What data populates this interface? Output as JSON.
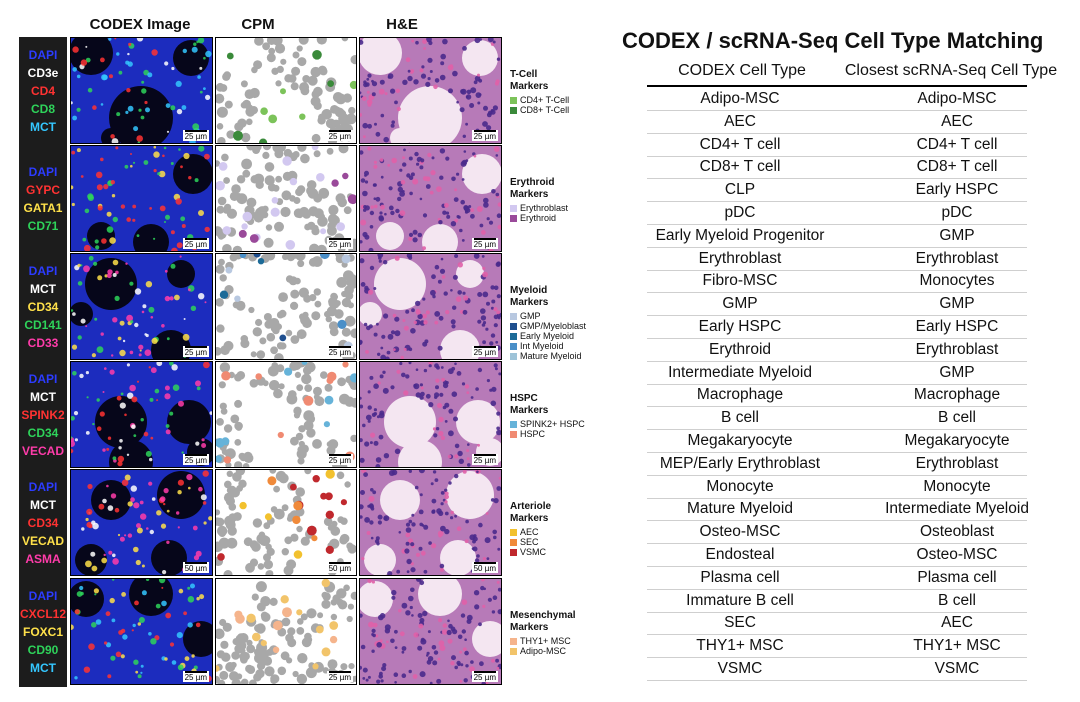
{
  "figure": {
    "column_headers": [
      "CODEX Image",
      "CPM",
      "H&E"
    ],
    "panels": [
      {
        "title": "T-Cell Markers",
        "markers": [
          {
            "text": "DAPI",
            "color": "#2c3cff"
          },
          {
            "text": "CD3e",
            "color": "#ffffff"
          },
          {
            "text": "CD4",
            "color": "#ff3232"
          },
          {
            "text": "CD8",
            "color": "#2ed35a"
          },
          {
            "text": "MCT",
            "color": "#34c7ff"
          }
        ],
        "legend": [
          {
            "label": "CD4+ T-Cell",
            "color": "#7cc35a"
          },
          {
            "label": "CD8+ T-Cell",
            "color": "#3a8a3a"
          }
        ],
        "scale_codex": "25 µm",
        "scale_cpm": "25 µm",
        "scale_he": "25 µm"
      },
      {
        "title": "Erythroid Markers",
        "markers": [
          {
            "text": "DAPI",
            "color": "#2c3cff"
          },
          {
            "text": "GYPC",
            "color": "#ff3232"
          },
          {
            "text": "GATA1",
            "color": "#ffe14a"
          },
          {
            "text": "CD71",
            "color": "#2ed35a"
          }
        ],
        "legend": [
          {
            "label": "Erythroblast",
            "color": "#d2c8f0"
          },
          {
            "label": "Erythroid",
            "color": "#9a4a9a"
          }
        ],
        "scale_codex": "25 µm",
        "scale_cpm": "25 µm",
        "scale_he": "25 µm"
      },
      {
        "title": "Myeloid Markers",
        "markers": [
          {
            "text": "DAPI",
            "color": "#2c3cff"
          },
          {
            "text": "MCT",
            "color": "#ffffff"
          },
          {
            "text": "CD34",
            "color": "#ffe14a"
          },
          {
            "text": "CD141",
            "color": "#2ed35a"
          },
          {
            "text": "CD33",
            "color": "#ff3caa"
          }
        ],
        "legend": [
          {
            "label": "GMP",
            "color": "#b8c8e0"
          },
          {
            "label": "GMP/Myeloblast",
            "color": "#1f4f8f"
          },
          {
            "label": "Early Myeloid",
            "color": "#1d6b98"
          },
          {
            "label": "Int Myeloid",
            "color": "#4a8fc8"
          },
          {
            "label": "Mature Myeloid",
            "color": "#9ec3d8"
          }
        ],
        "scale_codex": "25 µm",
        "scale_cpm": "25 µm",
        "scale_he": "25 µm"
      },
      {
        "title": "HSPC Markers",
        "markers": [
          {
            "text": "DAPI",
            "color": "#2c3cff"
          },
          {
            "text": "MCT",
            "color": "#ffffff"
          },
          {
            "text": "SPINK2",
            "color": "#ff3232"
          },
          {
            "text": "CD34",
            "color": "#2ed35a"
          },
          {
            "text": "VECAD",
            "color": "#ff3caa"
          }
        ],
        "legend": [
          {
            "label": "SPINK2+ HSPC",
            "color": "#66b3d9"
          },
          {
            "label": "HSPC",
            "color": "#f08a72"
          }
        ],
        "scale_codex": "25 µm",
        "scale_cpm": "25 µm",
        "scale_he": "25 µm"
      },
      {
        "title": "Arteriole Markers",
        "markers": [
          {
            "text": "DAPI",
            "color": "#2c3cff"
          },
          {
            "text": "MCT",
            "color": "#ffffff"
          },
          {
            "text": "CD34",
            "color": "#ff3232"
          },
          {
            "text": "VECAD",
            "color": "#ffe14a"
          },
          {
            "text": "ASMA",
            "color": "#ff3caa"
          }
        ],
        "legend": [
          {
            "label": "AEC",
            "color": "#f2c12e"
          },
          {
            "label": "SEC",
            "color": "#f08a3a"
          },
          {
            "label": "VSMC",
            "color": "#c0282d"
          }
        ],
        "scale_codex": "50 µm",
        "scale_cpm": "50 µm",
        "scale_he": "50 µm"
      },
      {
        "title": "Mesenchymal Markers",
        "markers": [
          {
            "text": "DAPI",
            "color": "#2c3cff"
          },
          {
            "text": "CXCL12",
            "color": "#ff3232"
          },
          {
            "text": "FOXC1",
            "color": "#ffe14a"
          },
          {
            "text": "CD90",
            "color": "#2ed35a"
          },
          {
            "text": "MCT",
            "color": "#34c7ff"
          }
        ],
        "legend": [
          {
            "label": "THY1+ MSC",
            "color": "#f5b48c"
          },
          {
            "label": "Adipo-MSC",
            "color": "#f2c46a"
          }
        ],
        "scale_codex": "25 µm",
        "scale_cpm": "25 µm",
        "scale_he": "25 µm"
      }
    ]
  },
  "table": {
    "title": "CODEX / scRNA-Seq Cell Type Matching",
    "col1_header": "CODEX Cell Type",
    "col2_header": "Closest scRNA-Seq Cell Type",
    "rows": [
      [
        "Adipo-MSC",
        "Adipo-MSC"
      ],
      [
        "AEC",
        "AEC"
      ],
      [
        "CD4+ T cell",
        "CD4+ T cell"
      ],
      [
        "CD8+ T cell",
        "CD8+ T cell"
      ],
      [
        "CLP",
        "Early HSPC"
      ],
      [
        "pDC",
        "pDC"
      ],
      [
        "Early Myeloid Progenitor",
        "GMP"
      ],
      [
        "Erythroblast",
        "Erythroblast"
      ],
      [
        "Fibro-MSC",
        "Monocytes"
      ],
      [
        "GMP",
        "GMP"
      ],
      [
        "Early HSPC",
        "Early HSPC"
      ],
      [
        "Erythroid",
        "Erythroblast"
      ],
      [
        "Intermediate Myeloid",
        "GMP"
      ],
      [
        "Macrophage",
        "Macrophage"
      ],
      [
        "B cell",
        "B cell"
      ],
      [
        "Megakaryocyte",
        "Megakaryocyte"
      ],
      [
        "MEP/Early Erythroblast",
        "Erythroblast"
      ],
      [
        "Monocyte",
        "Monocyte"
      ],
      [
        "Mature Myeloid",
        "Intermediate Myeloid"
      ],
      [
        "Osteo-MSC",
        "Osteoblast"
      ],
      [
        "Endosteal",
        "Osteo-MSC"
      ],
      [
        "Plasma cell",
        "Plasma cell"
      ],
      [
        "Immature B cell",
        "B cell"
      ],
      [
        "SEC",
        "AEC"
      ],
      [
        "THY1+ MSC",
        "THY1+ MSC"
      ],
      [
        "VSMC",
        "VSMC"
      ]
    ]
  }
}
